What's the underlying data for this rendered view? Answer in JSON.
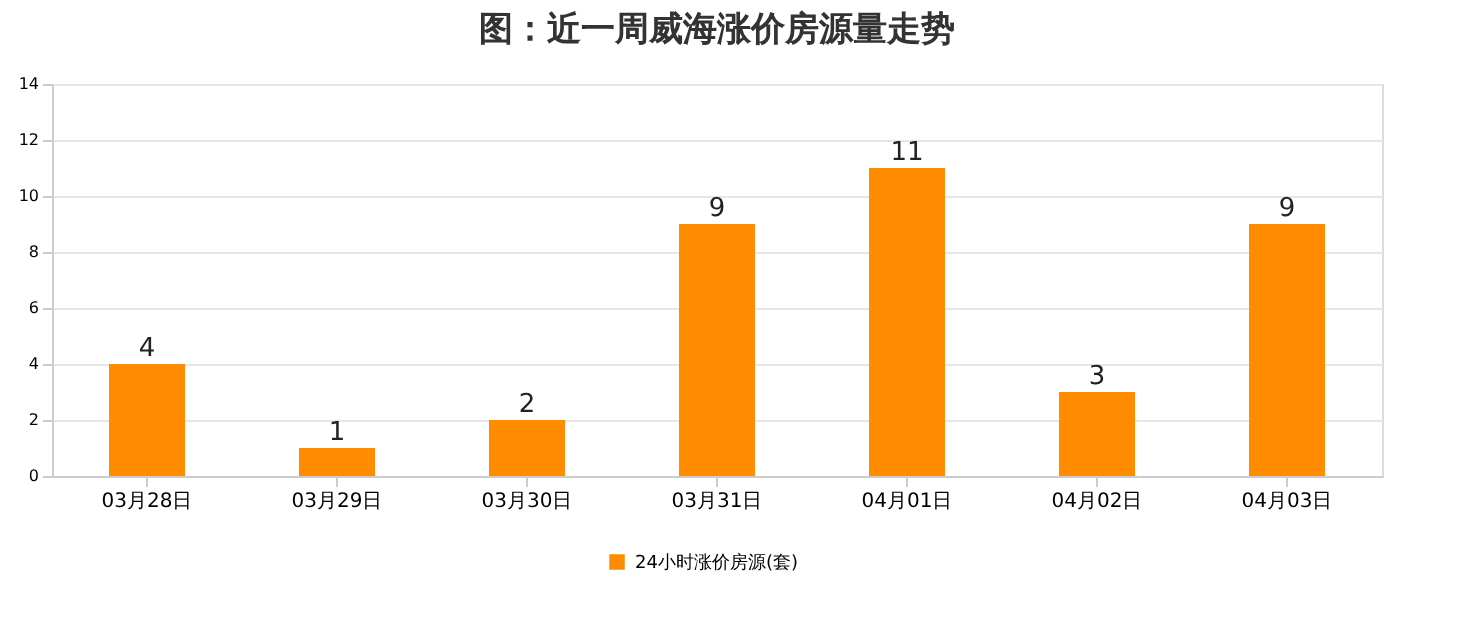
{
  "chart_data": {
    "type": "bar",
    "title": "图：近一周威海涨价房源量走势",
    "categories": [
      "03月28日",
      "03月29日",
      "03月30日",
      "03月31日",
      "04月01日",
      "04月02日",
      "04月03日"
    ],
    "series": [
      {
        "name": "24小时涨价房源(套)",
        "color": "#ff8c00",
        "values": [
          4,
          1,
          2,
          9,
          11,
          3,
          9
        ]
      }
    ],
    "ylim": [
      0,
      14
    ],
    "yticks": [
      0,
      2,
      4,
      6,
      8,
      10,
      12,
      14
    ],
    "grid": "y",
    "legend": "bottom",
    "data_labels": true
  }
}
